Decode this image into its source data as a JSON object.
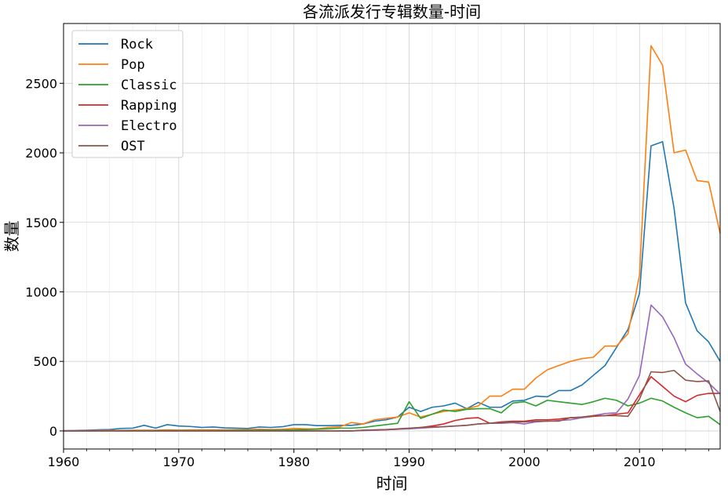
{
  "chart_data": {
    "type": "line",
    "title": "各流派发行专辑数量-时间",
    "xlabel": "时间",
    "ylabel": "数量",
    "xlim": [
      1960,
      2017
    ],
    "ylim": [
      -130,
      2930
    ],
    "xticks": [
      1960,
      1970,
      1980,
      1990,
      2000,
      2010
    ],
    "yticks": [
      0,
      500,
      1000,
      1500,
      2000,
      2500
    ],
    "xtick_labels": [
      "1960",
      "1970",
      "1980",
      "1990",
      "2000",
      "2010"
    ],
    "ytick_labels": [
      "0",
      "500",
      "1000",
      "1500",
      "2000",
      "2500"
    ],
    "grid": true,
    "legend": "top-left",
    "x": [
      1960,
      1961,
      1962,
      1963,
      1964,
      1965,
      1966,
      1967,
      1968,
      1969,
      1970,
      1971,
      1972,
      1973,
      1974,
      1975,
      1976,
      1977,
      1978,
      1979,
      1980,
      1981,
      1982,
      1983,
      1984,
      1985,
      1986,
      1987,
      1988,
      1989,
      1990,
      1991,
      1992,
      1993,
      1994,
      1995,
      1996,
      1997,
      1998,
      1999,
      2000,
      2001,
      2002,
      2003,
      2004,
      2005,
      2006,
      2007,
      2008,
      2009,
      2010,
      2011,
      2012,
      2013,
      2014,
      2015,
      2016,
      2017
    ],
    "series": [
      {
        "name": "Rock",
        "color": "#1f77b4",
        "values": [
          2,
          3,
          5,
          8,
          10,
          18,
          20,
          40,
          20,
          45,
          35,
          32,
          25,
          28,
          22,
          20,
          18,
          28,
          25,
          30,
          45,
          45,
          38,
          38,
          40,
          40,
          50,
          70,
          80,
          100,
          170,
          140,
          170,
          180,
          200,
          160,
          205,
          170,
          170,
          215,
          220,
          250,
          245,
          290,
          290,
          330,
          400,
          470,
          600,
          730,
          990,
          2050,
          2080,
          1600,
          920,
          720,
          640,
          500
        ]
      },
      {
        "name": "Pop",
        "color": "#ff7f0e",
        "values": [
          0,
          0,
          2,
          3,
          3,
          4,
          5,
          5,
          5,
          8,
          6,
          7,
          8,
          8,
          8,
          9,
          10,
          12,
          10,
          12,
          18,
          15,
          15,
          25,
          30,
          60,
          50,
          80,
          90,
          100,
          130,
          100,
          120,
          140,
          150,
          160,
          180,
          250,
          250,
          300,
          300,
          380,
          440,
          470,
          500,
          520,
          530,
          610,
          610,
          700,
          1120,
          2770,
          2630,
          2000,
          2020,
          1800,
          1790,
          1420
        ]
      },
      {
        "name": "Classic",
        "color": "#2ca02c",
        "values": [
          0,
          0,
          0,
          1,
          1,
          2,
          2,
          2,
          3,
          3,
          3,
          3,
          3,
          3,
          3,
          4,
          5,
          5,
          6,
          6,
          8,
          10,
          12,
          15,
          20,
          20,
          25,
          35,
          45,
          55,
          210,
          90,
          120,
          150,
          140,
          155,
          160,
          160,
          130,
          200,
          210,
          180,
          220,
          210,
          200,
          190,
          210,
          235,
          220,
          180,
          200,
          235,
          215,
          170,
          130,
          95,
          105,
          45
        ]
      },
      {
        "name": "Rapping",
        "color": "#d62728",
        "values": [
          0,
          0,
          0,
          0,
          0,
          0,
          0,
          0,
          0,
          0,
          0,
          0,
          0,
          0,
          0,
          0,
          0,
          0,
          0,
          0,
          0,
          0,
          0,
          0,
          0,
          0,
          5,
          5,
          8,
          12,
          18,
          25,
          35,
          50,
          75,
          90,
          95,
          55,
          65,
          70,
          70,
          80,
          80,
          85,
          95,
          95,
          105,
          110,
          120,
          130,
          260,
          390,
          320,
          250,
          210,
          255,
          270,
          270
        ]
      },
      {
        "name": "Electro",
        "color": "#9467bd",
        "values": [
          0,
          0,
          0,
          0,
          0,
          0,
          0,
          0,
          0,
          0,
          0,
          0,
          0,
          0,
          0,
          0,
          0,
          0,
          0,
          0,
          0,
          0,
          0,
          0,
          0,
          0,
          2,
          5,
          8,
          12,
          15,
          20,
          25,
          30,
          35,
          40,
          50,
          55,
          55,
          60,
          50,
          65,
          70,
          75,
          80,
          95,
          110,
          125,
          130,
          230,
          400,
          905,
          820,
          670,
          480,
          410,
          345,
          265
        ]
      },
      {
        "name": "OST",
        "color": "#8c564b",
        "values": [
          0,
          0,
          0,
          0,
          0,
          0,
          0,
          0,
          0,
          0,
          0,
          0,
          0,
          0,
          0,
          0,
          0,
          0,
          0,
          0,
          0,
          0,
          0,
          0,
          0,
          0,
          5,
          8,
          10,
          15,
          20,
          25,
          28,
          30,
          35,
          40,
          50,
          55,
          60,
          65,
          65,
          70,
          70,
          70,
          95,
          100,
          110,
          110,
          110,
          105,
          230,
          425,
          420,
          435,
          365,
          355,
          360,
          140
        ]
      }
    ]
  }
}
